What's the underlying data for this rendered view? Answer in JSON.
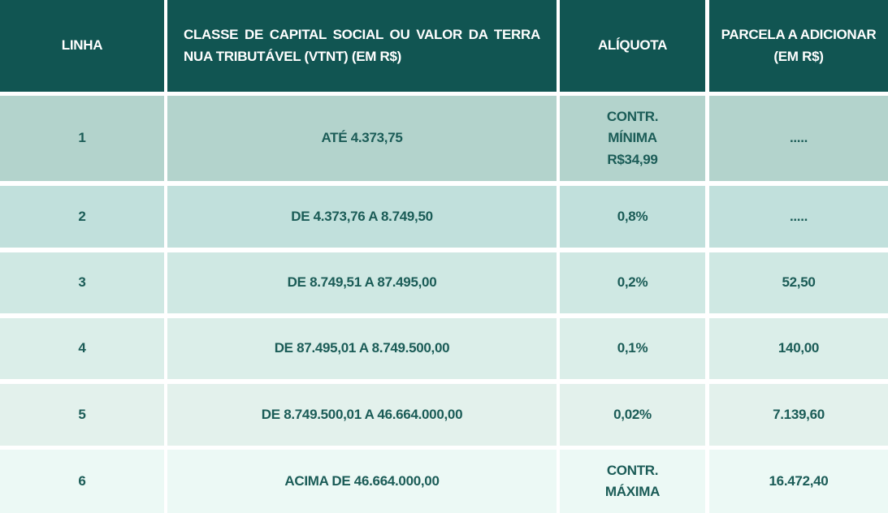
{
  "table": {
    "header": [
      "LINHA",
      "CLASSE DE CAPITAL SOCIAL OU VALOR DA TERRA NUA TRIBUTÁVEL (VTNT)  (EM R$)",
      "ALÍQUOTA",
      "PARCELA A ADICIONAR (EM R$)"
    ],
    "rows": [
      [
        "1",
        "ATÉ 4.373,75",
        "CONTR. MÍNIMA R$34,99",
        "....."
      ],
      [
        "2",
        "DE 4.373,76 A 8.749,50",
        "0,8%",
        "....."
      ],
      [
        "3",
        "DE 8.749,51 A 87.495,00",
        "0,2%",
        "52,50"
      ],
      [
        "4",
        "DE 87.495,01 A 8.749.500,00",
        "0,1%",
        "140,00"
      ],
      [
        "5",
        "DE 8.749.500,01 A 46.664.000,00",
        "0,02%",
        "7.139,60"
      ],
      [
        "6",
        "ACIMA DE 46.664.000,00",
        "CONTR. MÁXIMA",
        "16.472,40"
      ]
    ]
  }
}
